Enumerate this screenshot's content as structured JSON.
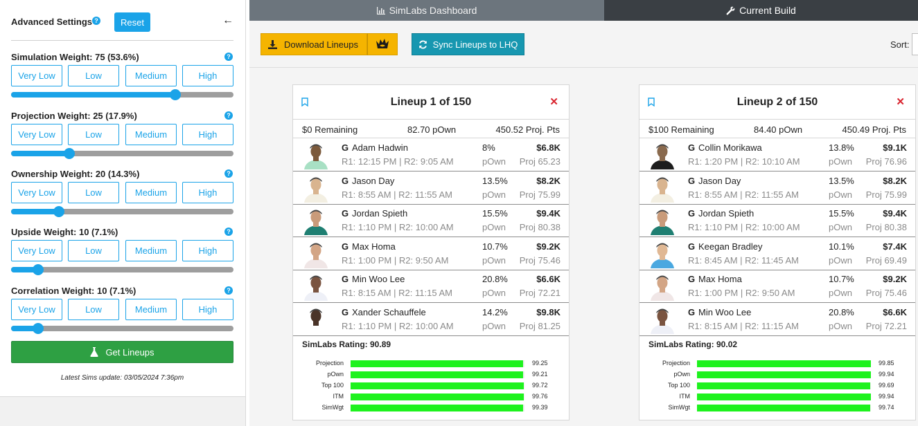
{
  "sidebar": {
    "title": "Advanced Settings",
    "reset_label": "Reset",
    "presets": [
      "Very Low",
      "Low",
      "Medium",
      "High"
    ],
    "weights": [
      {
        "label": "Simulation Weight: 75 (53.6%)",
        "value": 75
      },
      {
        "label": "Projection Weight: 25 (17.9%)",
        "value": 25
      },
      {
        "label": "Ownership Weight: 20 (14.3%)",
        "value": 20
      },
      {
        "label": "Upside Weight: 10 (7.1%)",
        "value": 10
      },
      {
        "label": "Correlation Weight: 10 (7.1%)",
        "value": 10
      }
    ],
    "get_lineups_label": "Get Lineups",
    "latest_update": "Latest Sims update: 03/05/2024 7:36pm"
  },
  "tabs": {
    "dashboard": "SimLabs Dashboard",
    "build": "Current Build"
  },
  "toolbar": {
    "download_label": "Download Lineups",
    "sync_label": "Sync Lineups to LHQ",
    "sort_label": "Sort:"
  },
  "colors": {
    "accent": "#1aa3e8",
    "download": "#f5b400",
    "sync": "#1797b0",
    "get_lineups": "#2ea043",
    "metric_bar": "#1ef21e",
    "close": "#d9232e"
  },
  "lineups": [
    {
      "title": "Lineup 1 of 150",
      "remaining": "$0 Remaining",
      "pown": "82.70 pOwn",
      "proj_pts": "450.52 Proj. Pts",
      "players": [
        {
          "pos": "G",
          "name": "Adam Hadwin",
          "times": "R1: 12:15 PM | R2: 9:05 AM",
          "own": "8%",
          "own_label": "pOwn",
          "salary": "$6.8K",
          "proj": "Proj 65.23"
        },
        {
          "pos": "G",
          "name": "Jason Day",
          "times": "R1: 8:55 AM | R2: 11:55 AM",
          "own": "13.5%",
          "own_label": "pOwn",
          "salary": "$8.2K",
          "proj": "Proj 75.99"
        },
        {
          "pos": "G",
          "name": "Jordan Spieth",
          "times": "R1: 1:10 PM | R2: 10:00 AM",
          "own": "15.5%",
          "own_label": "pOwn",
          "salary": "$9.4K",
          "proj": "Proj 80.38"
        },
        {
          "pos": "G",
          "name": "Max Homa",
          "times": "R1: 1:00 PM | R2: 9:50 AM",
          "own": "10.7%",
          "own_label": "pOwn",
          "salary": "$9.2K",
          "proj": "Proj 75.46"
        },
        {
          "pos": "G",
          "name": "Min Woo Lee",
          "times": "R1: 8:15 AM | R2: 11:15 AM",
          "own": "20.8%",
          "own_label": "pOwn",
          "salary": "$6.6K",
          "proj": "Proj 72.21"
        },
        {
          "pos": "G",
          "name": "Xander Schauffele",
          "times": "R1: 1:10 PM | R2: 10:00 AM",
          "own": "14.2%",
          "own_label": "pOwn",
          "salary": "$9.8K",
          "proj": "Proj 81.25"
        }
      ],
      "rating": "SimLabs Rating: 90.89",
      "metrics": [
        {
          "name": "Projection",
          "value": "99.25"
        },
        {
          "name": "pOwn",
          "value": "99.21"
        },
        {
          "name": "Top 100",
          "value": "99.72"
        },
        {
          "name": "ITM",
          "value": "99.76"
        },
        {
          "name": "SimWgt",
          "value": "99.39"
        }
      ]
    },
    {
      "title": "Lineup 2 of 150",
      "remaining": "$100 Remaining",
      "pown": "84.40 pOwn",
      "proj_pts": "450.49 Proj. Pts",
      "players": [
        {
          "pos": "G",
          "name": "Collin Morikawa",
          "times": "R1: 1:20 PM | R2: 10:10 AM",
          "own": "13.8%",
          "own_label": "pOwn",
          "salary": "$9.1K",
          "proj": "Proj 76.96"
        },
        {
          "pos": "G",
          "name": "Jason Day",
          "times": "R1: 8:55 AM | R2: 11:55 AM",
          "own": "13.5%",
          "own_label": "pOwn",
          "salary": "$8.2K",
          "proj": "Proj 75.99"
        },
        {
          "pos": "G",
          "name": "Jordan Spieth",
          "times": "R1: 1:10 PM | R2: 10:00 AM",
          "own": "15.5%",
          "own_label": "pOwn",
          "salary": "$9.4K",
          "proj": "Proj 80.38"
        },
        {
          "pos": "G",
          "name": "Keegan Bradley",
          "times": "R1: 8:45 AM | R2: 11:45 AM",
          "own": "10.1%",
          "own_label": "pOwn",
          "salary": "$7.4K",
          "proj": "Proj 69.49"
        },
        {
          "pos": "G",
          "name": "Max Homa",
          "times": "R1: 1:00 PM | R2: 9:50 AM",
          "own": "10.7%",
          "own_label": "pOwn",
          "salary": "$9.2K",
          "proj": "Proj 75.46"
        },
        {
          "pos": "G",
          "name": "Min Woo Lee",
          "times": "R1: 8:15 AM | R2: 11:15 AM",
          "own": "20.8%",
          "own_label": "pOwn",
          "salary": "$6.6K",
          "proj": "Proj 72.21"
        }
      ],
      "rating": "SimLabs Rating: 90.02",
      "metrics": [
        {
          "name": "Projection",
          "value": "99.85"
        },
        {
          "name": "pOwn",
          "value": "99.94"
        },
        {
          "name": "Top 100",
          "value": "99.69"
        },
        {
          "name": "ITM",
          "value": "99.94"
        },
        {
          "name": "SimWgt",
          "value": "99.74"
        }
      ]
    }
  ]
}
